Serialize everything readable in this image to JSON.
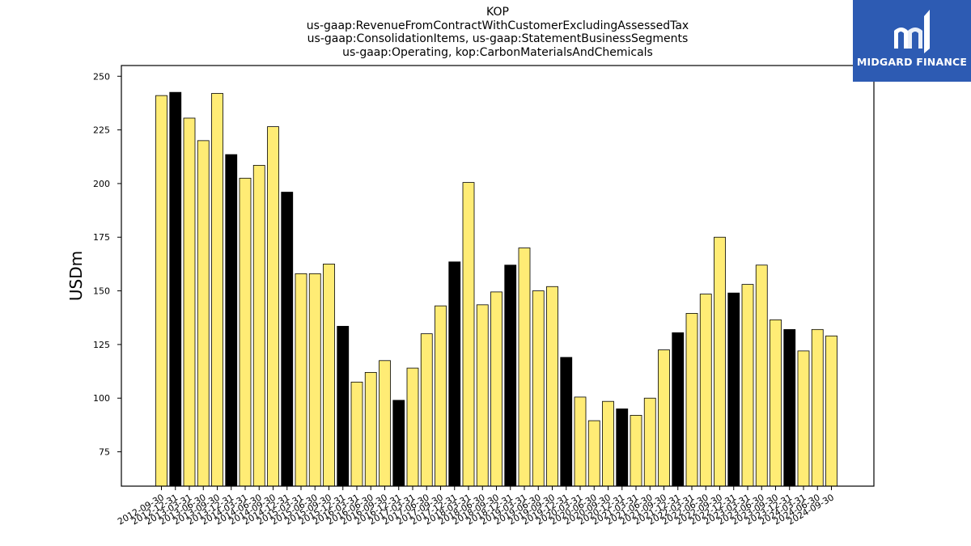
{
  "chart_data": {
    "type": "bar",
    "title": "KOP",
    "subtitle_lines": [
      "us-gaap:RevenueFromContractWithCustomerExcludingAssessedTax",
      "us-gaap:ConsolidationItems, us-gaap:StatementBusinessSegments",
      "us-gaap:Operating, kop:CarbonMaterialsAndChemicals"
    ],
    "ylabel": "USDm",
    "xlabel": "",
    "ylim": [
      59,
      255
    ],
    "yticks": [
      75,
      100,
      125,
      150,
      175,
      200,
      225,
      250
    ],
    "grid": false,
    "colors": {
      "quarter": "#ffec75",
      "year_end": "#000000",
      "edge": "#000000"
    },
    "categories": [
      "2012-09-30",
      "2012-12-31",
      "2013-03-31",
      "2013-06-30",
      "2013-09-30",
      "2013-12-31",
      "2014-03-31",
      "2014-06-30",
      "2014-09-30",
      "2014-12-31",
      "2015-03-31",
      "2015-06-30",
      "2015-09-30",
      "2015-12-31",
      "2016-03-31",
      "2016-06-30",
      "2016-09-30",
      "2016-12-31",
      "2017-03-31",
      "2017-06-30",
      "2017-09-30",
      "2017-12-31",
      "2018-03-31",
      "2018-06-30",
      "2018-09-30",
      "2018-12-31",
      "2019-03-31",
      "2019-06-30",
      "2019-09-30",
      "2019-12-31",
      "2020-03-31",
      "2020-06-30",
      "2020-09-30",
      "2020-12-31",
      "2021-03-31",
      "2021-06-30",
      "2021-09-30",
      "2021-12-31",
      "2022-03-31",
      "2022-06-30",
      "2022-09-30",
      "2022-12-31",
      "2023-03-31",
      "2023-06-30",
      "2023-09-30",
      "2023-12-31",
      "2024-03-31",
      "2024-06-30",
      "2024-09-30"
    ],
    "values": [
      241,
      242.5,
      230.5,
      220,
      242,
      213.5,
      202.5,
      208.5,
      226.5,
      196,
      158,
      158,
      162.5,
      133.5,
      107.5,
      112,
      117.5,
      99,
      114,
      130,
      143,
      163.5,
      200.5,
      143.5,
      149.5,
      162,
      170,
      150,
      152,
      119,
      100.5,
      89.5,
      98.5,
      95,
      92,
      100,
      122.5,
      130.5,
      139.5,
      148.5,
      175,
      149,
      153,
      162,
      136.5,
      132,
      122,
      132,
      129
    ],
    "highlight": [
      false,
      true,
      false,
      false,
      false,
      true,
      false,
      false,
      false,
      true,
      false,
      false,
      false,
      true,
      false,
      false,
      false,
      true,
      false,
      false,
      false,
      true,
      false,
      false,
      false,
      true,
      false,
      false,
      false,
      true,
      false,
      false,
      false,
      true,
      false,
      false,
      false,
      true,
      false,
      false,
      false,
      true,
      false,
      false,
      false,
      true,
      false,
      false,
      false
    ]
  },
  "logo": {
    "text": "MIDGARD FINANCE",
    "color": "#2d5bb3"
  }
}
